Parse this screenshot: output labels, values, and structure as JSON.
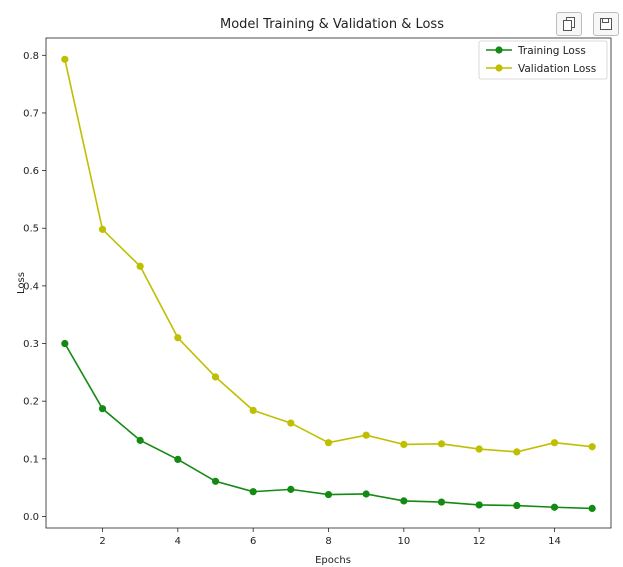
{
  "toolbar": {
    "copy_icon": "copy-icon",
    "save_icon": "save-icon"
  },
  "chart_data": {
    "type": "line",
    "title": "Model Training & Validation & Loss",
    "xlabel": "Epochs",
    "ylabel": "Loss",
    "xlim": [
      0.5,
      15.5
    ],
    "ylim": [
      -0.02,
      0.83
    ],
    "xticks": [
      2,
      4,
      6,
      8,
      10,
      12,
      14
    ],
    "yticks": [
      0.0,
      0.1,
      0.2,
      0.3,
      0.4,
      0.5,
      0.6,
      0.7,
      0.8
    ],
    "grid": false,
    "legend_position": "top-right",
    "x": [
      1,
      2,
      3,
      4,
      5,
      6,
      7,
      8,
      9,
      10,
      11,
      12,
      13,
      14,
      15
    ],
    "series": [
      {
        "name": "Training Loss",
        "color": "#138a13",
        "values": [
          0.3,
          0.187,
          0.132,
          0.099,
          0.061,
          0.043,
          0.047,
          0.038,
          0.039,
          0.027,
          0.025,
          0.02,
          0.019,
          0.016,
          0.014
        ]
      },
      {
        "name": "Validation Loss",
        "color": "#bfbf00",
        "values": [
          0.793,
          0.498,
          0.434,
          0.31,
          0.242,
          0.184,
          0.162,
          0.128,
          0.141,
          0.125,
          0.126,
          0.117,
          0.112,
          0.128,
          0.121
        ]
      }
    ]
  }
}
